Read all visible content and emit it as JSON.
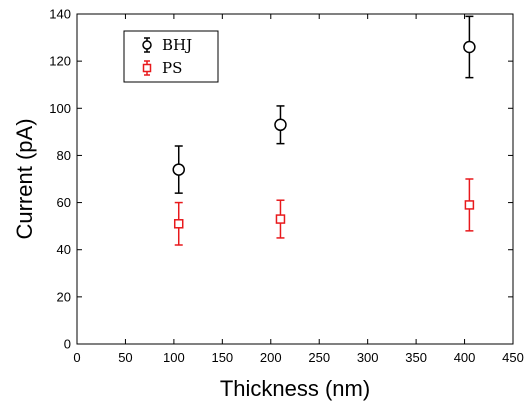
{
  "chart_data": {
    "type": "scatter",
    "xlabel": "Thickness (nm)",
    "ylabel": "Current (pA)",
    "xlim": [
      0,
      450
    ],
    "ylim": [
      0,
      140
    ],
    "xticks": [
      0,
      50,
      100,
      150,
      200,
      250,
      300,
      350,
      400,
      450
    ],
    "yticks": [
      0,
      20,
      40,
      60,
      80,
      100,
      120,
      140
    ],
    "xtick_labels": [
      "0",
      "50",
      "100",
      "150",
      "200",
      "250",
      "300",
      "350",
      "400",
      "450"
    ],
    "ytick_labels": [
      "0",
      "20",
      "40",
      "60",
      "80",
      "100",
      "120",
      "140"
    ],
    "grid": false,
    "legend_position": "top-left",
    "series": [
      {
        "name": "BHJ",
        "color": "#000000",
        "marker": "circle",
        "x": [
          105,
          210,
          405
        ],
        "y": [
          74,
          93,
          126
        ],
        "err_low": [
          64,
          85,
          113
        ],
        "err_high": [
          84,
          101,
          139
        ]
      },
      {
        "name": "PS",
        "color": "#e8191c",
        "marker": "square",
        "x": [
          105,
          210,
          405
        ],
        "y": [
          51,
          53,
          59
        ],
        "err_low": [
          42,
          45,
          48
        ],
        "err_high": [
          60,
          61,
          70
        ]
      }
    ]
  }
}
